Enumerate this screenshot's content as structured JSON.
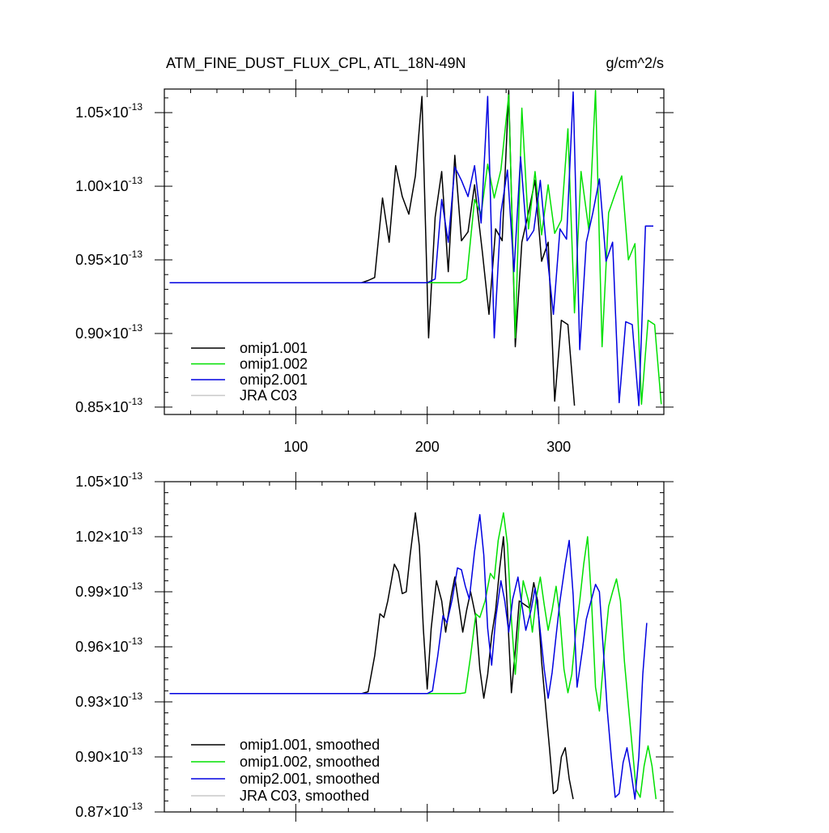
{
  "header": {
    "title": "ATM_FINE_DUST_FLUX_CPL, ATL_18N-49N",
    "units": "g/cm^2/s"
  },
  "chart_data": [
    {
      "type": "line",
      "panel": "top",
      "xlim": [
        0,
        380
      ],
      "ylim": [
        0.845,
        1.066
      ],
      "exponent": "-13",
      "x_ticks": [
        100,
        200,
        300
      ],
      "y_ticks": [
        0.85,
        0.9,
        0.95,
        1.0,
        1.05
      ],
      "y_tick_labels": [
        "0.85",
        "0.90",
        "0.95",
        "1.00",
        "1.05"
      ],
      "legend_position": "bottom-left",
      "series": [
        {
          "name": "omip1.001",
          "color": "#000000",
          "points": [
            [
              4,
              0.9345
            ],
            [
              150,
              0.9345
            ],
            [
              155,
              0.936
            ],
            [
              160,
              0.938
            ],
            [
              166,
              0.992
            ],
            [
              171,
              0.962
            ],
            [
              176,
              1.014
            ],
            [
              181,
              0.993
            ],
            [
              186,
              0.981
            ],
            [
              191,
              1.007
            ],
            [
              196,
              1.061
            ],
            [
              201,
              0.897
            ],
            [
              206,
              0.979
            ],
            [
              211,
              1.01
            ],
            [
              216,
              0.942
            ],
            [
              221,
              1.021
            ],
            [
              226,
              0.963
            ],
            [
              231,
              0.969
            ],
            [
              236,
              1.001
            ],
            [
              242,
              0.955
            ],
            [
              247,
              0.913
            ],
            [
              252,
              0.971
            ],
            [
              257,
              0.963
            ],
            [
              262,
              1.065
            ],
            [
              267,
              0.891
            ],
            [
              272,
              0.962
            ],
            [
              277,
              0.982
            ],
            [
              282,
              1.004
            ],
            [
              287,
              0.949
            ],
            [
              292,
              0.962
            ],
            [
              297,
              0.854
            ],
            [
              302,
              0.909
            ],
            [
              307,
              0.906
            ],
            [
              312,
              0.851
            ]
          ]
        },
        {
          "name": "omip1.002",
          "color": "#00e000",
          "points": [
            [
              4,
              0.9345
            ],
            [
              225,
              0.9345
            ],
            [
              230,
              0.937
            ],
            [
              236,
              0.991
            ],
            [
              241,
              0.981
            ],
            [
              246,
              1.015
            ],
            [
              251,
              0.992
            ],
            [
              256,
              1.011
            ],
            [
              262,
              1.062
            ],
            [
              267,
              0.897
            ],
            [
              272,
              1.053
            ],
            [
              277,
              0.971
            ],
            [
              282,
              1.01
            ],
            [
              287,
              0.967
            ],
            [
              292,
              1.001
            ],
            [
              297,
              0.968
            ],
            [
              302,
              0.977
            ],
            [
              307,
              1.039
            ],
            [
              312,
              0.914
            ],
            [
              317,
              1.01
            ],
            [
              323,
              0.97
            ],
            [
              328,
              1.065
            ],
            [
              333,
              0.891
            ],
            [
              338,
              0.982
            ],
            [
              343,
              0.995
            ],
            [
              348,
              1.007
            ],
            [
              353,
              0.95
            ],
            [
              358,
              0.961
            ],
            [
              363,
              0.852
            ],
            [
              368,
              0.909
            ],
            [
              373,
              0.906
            ],
            [
              378,
              0.852
            ]
          ]
        },
        {
          "name": "omip2.001",
          "color": "#0000e0",
          "points": [
            [
              4,
              0.9345
            ],
            [
              200,
              0.9345
            ],
            [
              206,
              0.937
            ],
            [
              211,
              0.991
            ],
            [
              216,
              0.962
            ],
            [
              221,
              1.013
            ],
            [
              226,
              1.004
            ],
            [
              231,
              0.993
            ],
            [
              236,
              1.014
            ],
            [
              241,
              0.975
            ],
            [
              246,
              1.061
            ],
            [
              251,
              0.897
            ],
            [
              256,
              0.982
            ],
            [
              261,
              1.011
            ],
            [
              266,
              0.942
            ],
            [
              271,
              1.02
            ],
            [
              276,
              0.963
            ],
            [
              281,
              0.97
            ],
            [
              286,
              1.004
            ],
            [
              291,
              0.955
            ],
            [
              296,
              0.913
            ],
            [
              301,
              0.971
            ],
            [
              306,
              0.964
            ],
            [
              311,
              1.064
            ],
            [
              316,
              0.889
            ],
            [
              321,
              0.962
            ],
            [
              326,
              0.982
            ],
            [
              331,
              1.005
            ],
            [
              336,
              0.949
            ],
            [
              341,
              0.962
            ],
            [
              346,
              0.853
            ],
            [
              351,
              0.908
            ],
            [
              356,
              0.906
            ],
            [
              361,
              0.851
            ],
            [
              366,
              0.973
            ],
            [
              372,
              0.973
            ]
          ]
        },
        {
          "name": "JRA C03",
          "color": "#c8c8c8",
          "points": []
        }
      ]
    },
    {
      "type": "line",
      "panel": "bottom",
      "xlim": [
        0,
        380
      ],
      "ylim": [
        0.87,
        1.05
      ],
      "exponent": "-13",
      "x_ticks": [
        100,
        200,
        300
      ],
      "y_ticks": [
        0.87,
        0.9,
        0.93,
        0.96,
        0.99,
        1.02,
        1.05
      ],
      "y_tick_labels": [
        "0.87",
        "0.90",
        "0.93",
        "0.96",
        "0.99",
        "1.02",
        "1.05"
      ],
      "legend_position": "bottom-left",
      "series": [
        {
          "name": "omip1.001, smoothed",
          "color": "#000000",
          "points": [
            [
              4,
              0.9345
            ],
            [
              150,
              0.9345
            ],
            [
              155,
              0.9355
            ],
            [
              160,
              0.955
            ],
            [
              164,
              0.978
            ],
            [
              167,
              0.976
            ],
            [
              170,
              0.985
            ],
            [
              175,
              1.005
            ],
            [
              178,
              1.001
            ],
            [
              181,
              0.989
            ],
            [
              184,
              0.99
            ],
            [
              187,
              1.01
            ],
            [
              191,
              1.033
            ],
            [
              194,
              1.015
            ],
            [
              197,
              0.97
            ],
            [
              200,
              0.937
            ],
            [
              203,
              0.97
            ],
            [
              207,
              0.996
            ],
            [
              211,
              0.985
            ],
            [
              214,
              0.968
            ],
            [
              218,
              0.987
            ],
            [
              221,
              0.998
            ],
            [
              224,
              0.983
            ],
            [
              227,
              0.968
            ],
            [
              230,
              0.98
            ],
            [
              233,
              0.99
            ],
            [
              237,
              0.976
            ],
            [
              240,
              0.948
            ],
            [
              243,
              0.932
            ],
            [
              246,
              0.945
            ],
            [
              249,
              0.966
            ],
            [
              252,
              0.98
            ],
            [
              255,
              1.002
            ],
            [
              258,
              1.02
            ],
            [
              261,
              0.98
            ],
            [
              264,
              0.935
            ],
            [
              267,
              0.958
            ],
            [
              270,
              0.985
            ],
            [
              274,
              0.983
            ],
            [
              278,
              0.981
            ],
            [
              281,
              0.995
            ],
            [
              284,
              0.985
            ],
            [
              287,
              0.952
            ],
            [
              290,
              0.928
            ],
            [
              293,
              0.905
            ],
            [
              296,
              0.88
            ],
            [
              299,
              0.882
            ],
            [
              302,
              0.9
            ],
            [
              305,
              0.905
            ],
            [
              308,
              0.888
            ],
            [
              311,
              0.877
            ]
          ]
        },
        {
          "name": "omip1.002, smoothed",
          "color": "#00e000",
          "points": [
            [
              4,
              0.9345
            ],
            [
              225,
              0.9345
            ],
            [
              229,
              0.935
            ],
            [
              233,
              0.955
            ],
            [
              237,
              0.978
            ],
            [
              240,
              0.976
            ],
            [
              244,
              0.985
            ],
            [
              248,
              1.0
            ],
            [
              251,
              0.997
            ],
            [
              254,
              1.018
            ],
            [
              258,
              1.033
            ],
            [
              261,
              1.016
            ],
            [
              264,
              0.975
            ],
            [
              267,
              0.945
            ],
            [
              270,
              0.974
            ],
            [
              273,
              0.996
            ],
            [
              277,
              0.985
            ],
            [
              280,
              0.968
            ],
            [
              283,
              0.987
            ],
            [
              286,
              0.998
            ],
            [
              289,
              0.983
            ],
            [
              292,
              0.969
            ],
            [
              295,
              0.98
            ],
            [
              298,
              0.993
            ],
            [
              301,
              0.976
            ],
            [
              304,
              0.948
            ],
            [
              307,
              0.935
            ],
            [
              310,
              0.945
            ],
            [
              313,
              0.968
            ],
            [
              316,
              0.985
            ],
            [
              319,
              1.005
            ],
            [
              322,
              1.02
            ],
            [
              325,
              0.985
            ],
            [
              328,
              0.938
            ],
            [
              331,
              0.925
            ],
            [
              335,
              0.96
            ],
            [
              338,
              0.982
            ],
            [
              341,
              0.99
            ],
            [
              344,
              0.997
            ],
            [
              347,
              0.985
            ],
            [
              350,
              0.952
            ],
            [
              353,
              0.928
            ],
            [
              356,
              0.905
            ],
            [
              359,
              0.882
            ],
            [
              362,
              0.878
            ],
            [
              365,
              0.895
            ],
            [
              368,
              0.906
            ],
            [
              371,
              0.895
            ],
            [
              374,
              0.877
            ]
          ]
        },
        {
          "name": "omip2.001, smoothed",
          "color": "#0000e0",
          "points": [
            [
              4,
              0.9345
            ],
            [
              200,
              0.9345
            ],
            [
              204,
              0.936
            ],
            [
              208,
              0.955
            ],
            [
              212,
              0.977
            ],
            [
              215,
              0.973
            ],
            [
              219,
              0.986
            ],
            [
              223,
              1.003
            ],
            [
              226,
              1.002
            ],
            [
              229,
              0.993
            ],
            [
              232,
              0.986
            ],
            [
              236,
              1.012
            ],
            [
              240,
              1.032
            ],
            [
              243,
              1.01
            ],
            [
              246,
              0.97
            ],
            [
              249,
              0.95
            ],
            [
              252,
              0.975
            ],
            [
              256,
              0.996
            ],
            [
              259,
              0.985
            ],
            [
              262,
              0.968
            ],
            [
              265,
              0.986
            ],
            [
              269,
              0.998
            ],
            [
              272,
              0.983
            ],
            [
              275,
              0.969
            ],
            [
              279,
              0.98
            ],
            [
              282,
              0.992
            ],
            [
              285,
              0.975
            ],
            [
              289,
              0.948
            ],
            [
              292,
              0.932
            ],
            [
              295,
              0.946
            ],
            [
              298,
              0.966
            ],
            [
              301,
              0.985
            ],
            [
              305,
              1.005
            ],
            [
              308,
              1.018
            ],
            [
              311,
              0.988
            ],
            [
              314,
              0.938
            ],
            [
              318,
              0.958
            ],
            [
              321,
              0.975
            ],
            [
              325,
              0.986
            ],
            [
              328,
              0.994
            ],
            [
              331,
              0.99
            ],
            [
              334,
              0.958
            ],
            [
              337,
              0.925
            ],
            [
              340,
              0.9
            ],
            [
              343,
              0.878
            ],
            [
              346,
              0.88
            ],
            [
              349,
              0.897
            ],
            [
              352,
              0.905
            ],
            [
              355,
              0.892
            ],
            [
              358,
              0.877
            ],
            [
              361,
              0.9
            ],
            [
              364,
              0.945
            ],
            [
              367,
              0.973
            ]
          ]
        },
        {
          "name": "JRA C03, smoothed",
          "color": "#c8c8c8",
          "points": []
        }
      ]
    }
  ]
}
